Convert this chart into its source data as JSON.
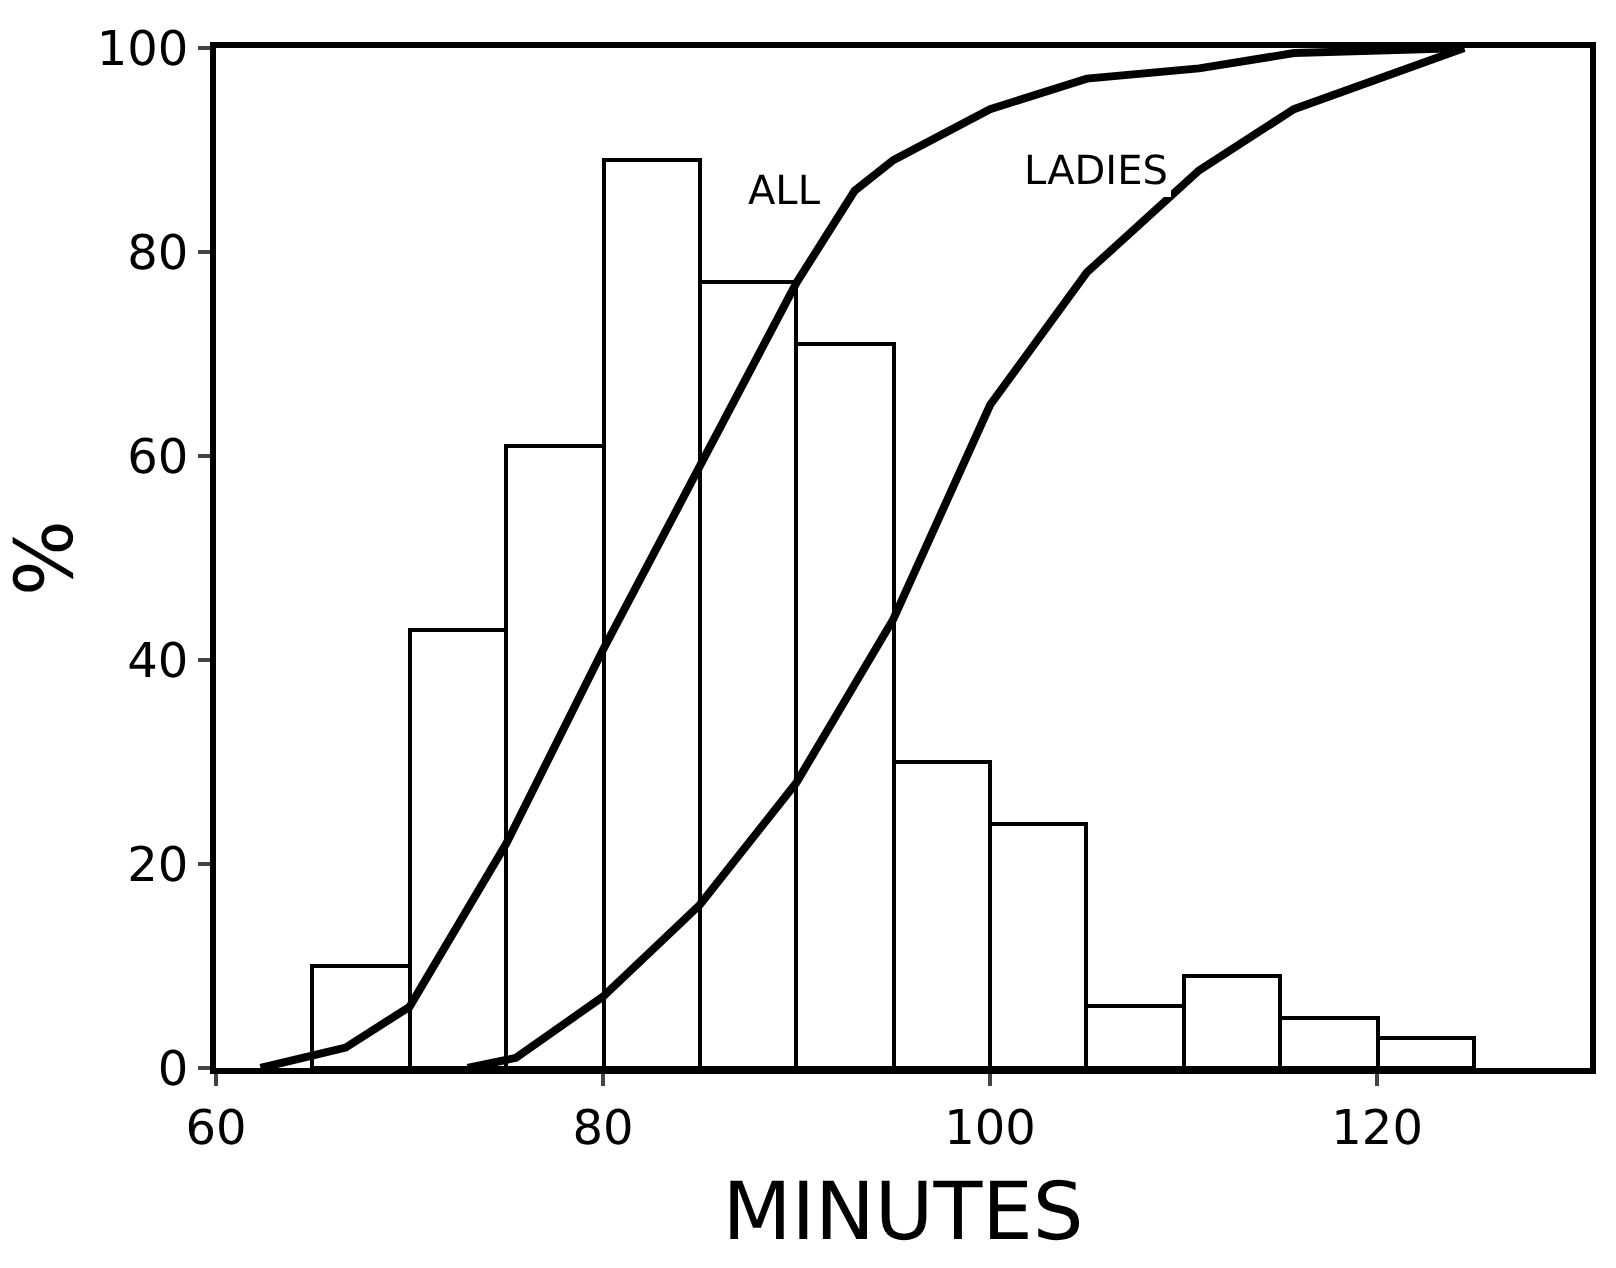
{
  "chart_data": {
    "type": "histogram",
    "xlabel": "MINUTES",
    "ylabel": "%",
    "bins": [
      65,
      70,
      75,
      80,
      85,
      90,
      95,
      100,
      105,
      110,
      115,
      120,
      125
    ],
    "values": [
      10,
      43,
      61,
      89,
      77,
      71,
      30,
      24,
      6,
      9,
      5,
      3
    ],
    "color": "#ffffff",
    "series": [
      {
        "name": "ALL",
        "type": "line",
        "color": "#000000",
        "x": [
          62.3,
          66.7,
          70,
          75,
          80,
          85,
          90,
          93,
          95,
          100,
          105,
          110.8,
          115.7,
          124.5
        ],
        "values": [
          0,
          2,
          6,
          22,
          41,
          59,
          77,
          86,
          89,
          94,
          97,
          98,
          99.5,
          100
        ]
      },
      {
        "name": "LADIES",
        "type": "line",
        "color": "#000000",
        "x": [
          73,
          75.5,
          80,
          85,
          90,
          95,
          100,
          105,
          110.8,
          115.7,
          124.5
        ],
        "values": [
          0,
          1,
          7,
          16,
          28,
          44,
          65,
          78,
          88,
          94,
          100
        ]
      }
    ],
    "xlim": [
      60,
      131
    ],
    "ylim": [
      0,
      100
    ],
    "xticks": [
      60,
      80,
      100,
      120
    ],
    "yticks": [
      0,
      20,
      40,
      60,
      80,
      100
    ],
    "legend": false,
    "marker": "none",
    "line_style": "solid"
  }
}
